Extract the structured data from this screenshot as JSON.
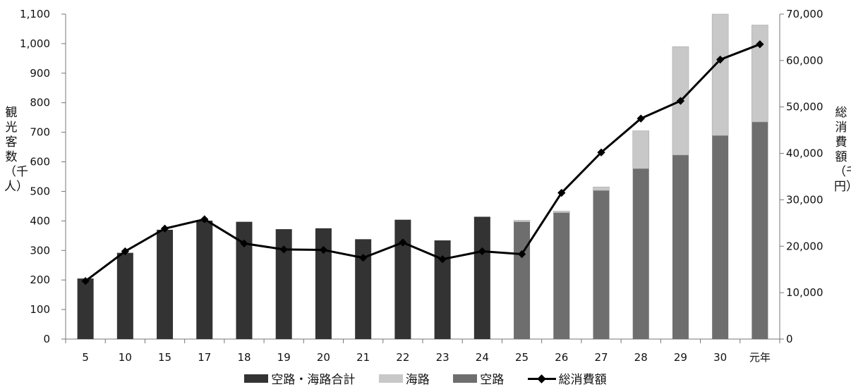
{
  "chart_data": {
    "type": "bar",
    "categories": [
      "5",
      "10",
      "15",
      "17",
      "18",
      "19",
      "20",
      "21",
      "22",
      "23",
      "24",
      "25",
      "26",
      "27",
      "28",
      "29",
      "30",
      "元年"
    ],
    "series": [
      {
        "name": "空路・海路合計",
        "kind": "bar",
        "stack": "s",
        "values": [
          205,
          292,
          370,
          401,
          397,
          372,
          375,
          338,
          404,
          334,
          414,
          null,
          null,
          null,
          null,
          null,
          null,
          null
        ]
      },
      {
        "name": "空路",
        "kind": "bar",
        "stack": "s",
        "values": [
          null,
          null,
          null,
          null,
          null,
          null,
          null,
          null,
          null,
          null,
          null,
          397,
          428,
          503,
          577,
          623,
          689,
          735
        ]
      },
      {
        "name": "海路",
        "kind": "bar",
        "stack": "s",
        "values": [
          null,
          null,
          null,
          null,
          null,
          null,
          null,
          null,
          null,
          null,
          null,
          5,
          5,
          12,
          128,
          367,
          415,
          328
        ]
      },
      {
        "name": "総消費額",
        "kind": "line",
        "axis": "right",
        "values": [
          12500,
          18900,
          23800,
          25800,
          20600,
          19300,
          19200,
          17500,
          20800,
          17200,
          18900,
          18300,
          31500,
          40200,
          47500,
          51300,
          60200,
          63500
        ]
      }
    ],
    "ylabel": "観光客数（千人）",
    "y2label": "総消費額（千円）",
    "ylim": [
      0,
      1100
    ],
    "y2lim": [
      0,
      70000
    ],
    "yticks": [
      "0",
      "100",
      "200",
      "300",
      "400",
      "500",
      "600",
      "700",
      "800",
      "900",
      "1,000",
      "1,100"
    ],
    "y2ticks": [
      "0",
      "10,000",
      "20,000",
      "30,000",
      "40,000",
      "50,000",
      "60,000",
      "70,000"
    ],
    "legend": [
      "空路・海路合計",
      "海路",
      "空路",
      "総消費額"
    ],
    "legend_position": "bottom",
    "grid": false,
    "colors": {
      "total": "#333333",
      "sea": "#c8c8c8",
      "air": "#6e6e6e",
      "line": "#000000",
      "axis": "#777777"
    }
  }
}
